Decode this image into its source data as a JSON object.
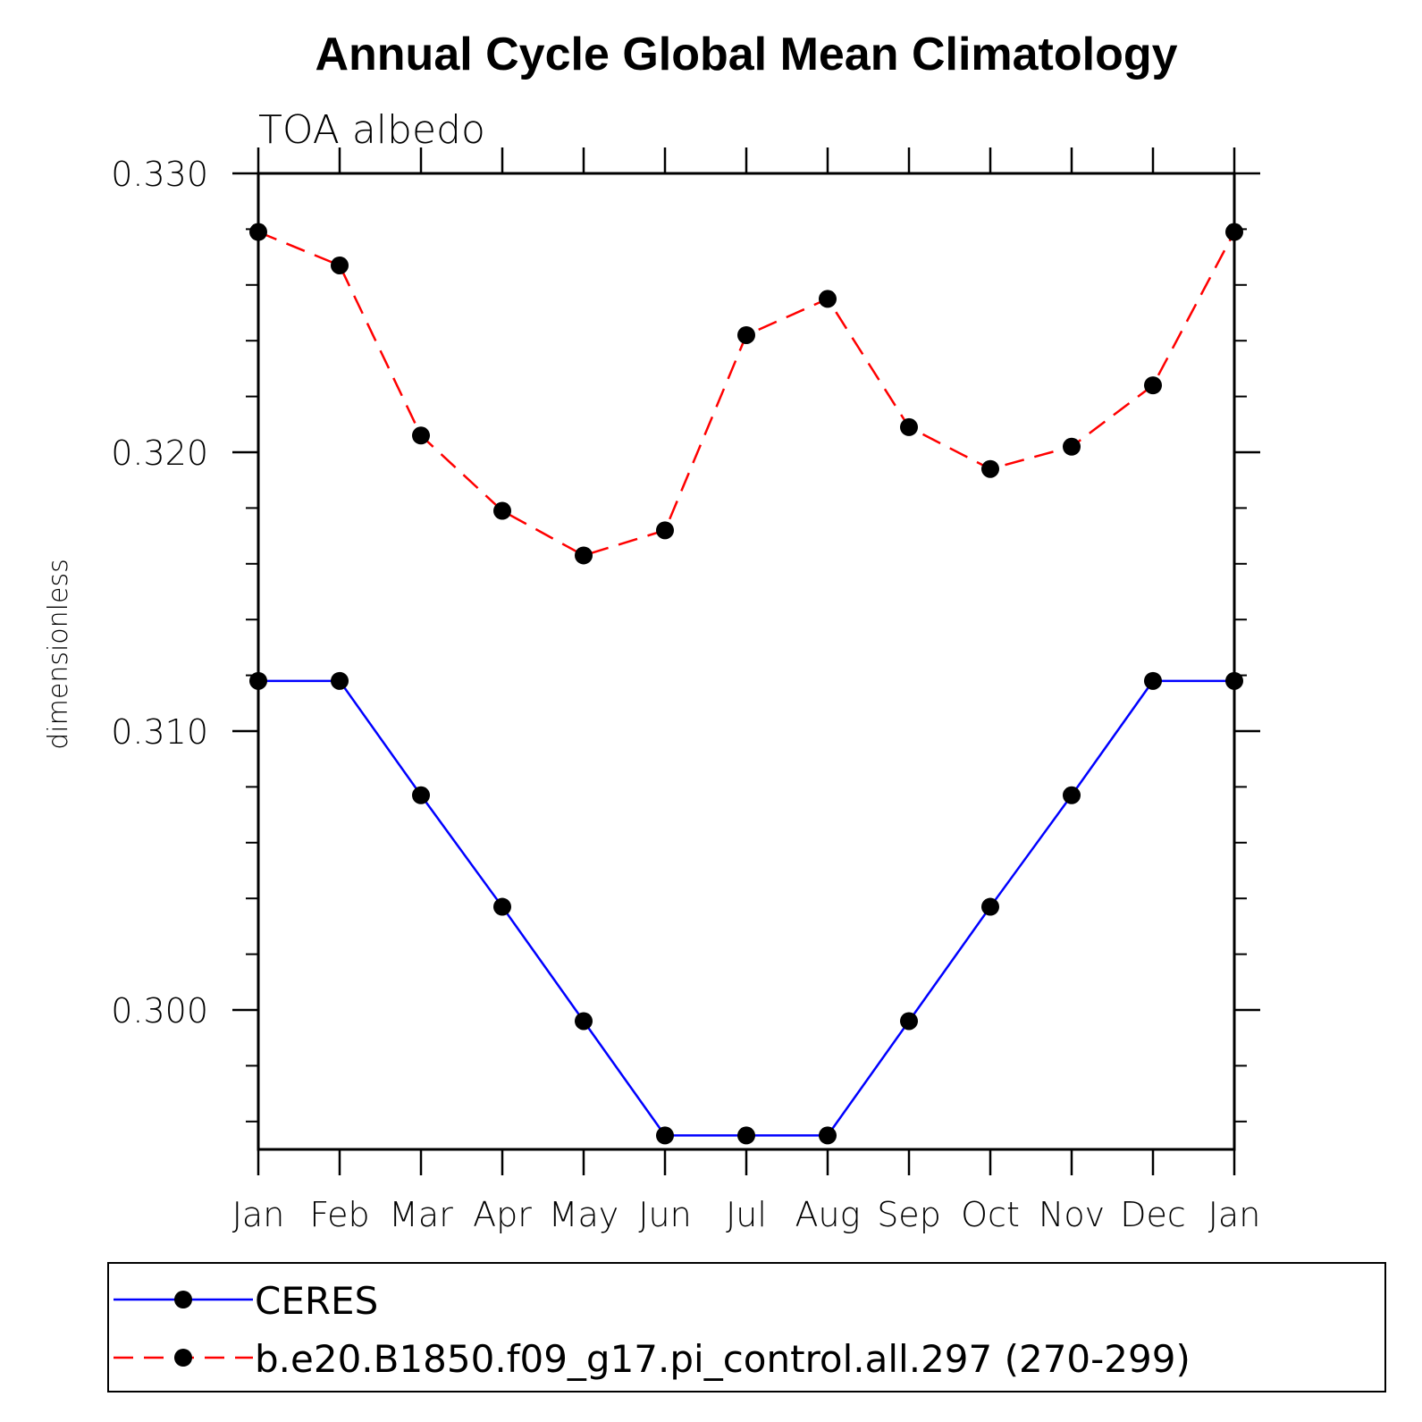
{
  "chart_data": {
    "type": "line",
    "title": "Annual Cycle Global Mean Climatology",
    "subtitle": "TOA albedo",
    "xlabel": "",
    "ylabel": "dimensionless",
    "categories": [
      "Jan",
      "Feb",
      "Mar",
      "Apr",
      "May",
      "Jun",
      "Jul",
      "Aug",
      "Sep",
      "Oct",
      "Nov",
      "Dec",
      "Jan"
    ],
    "ylim": [
      0.295,
      0.33
    ],
    "yticks": [
      0.3,
      0.31,
      0.32,
      0.33
    ],
    "ytick_labels": [
      "0.300",
      "0.310",
      "0.320",
      "0.330"
    ],
    "series": [
      {
        "name": "CERES",
        "color": "#0000ff",
        "dash": "solid",
        "values": [
          0.3118,
          0.3118,
          0.3077,
          0.3037,
          0.2996,
          0.2955,
          0.2955,
          0.2955,
          0.2996,
          0.3037,
          0.3077,
          0.3118,
          0.3118
        ]
      },
      {
        "name": "b.e20.B1850.f09_g17.pi_control.all.297 (270-299)",
        "color": "#ff0000",
        "dash": "dashed",
        "values": [
          0.3279,
          0.3267,
          0.3206,
          0.3179,
          0.3163,
          0.3172,
          0.3242,
          0.3255,
          0.3209,
          0.3194,
          0.3202,
          0.3224,
          0.3279
        ]
      }
    ],
    "marker_color": "#000000",
    "grid": false,
    "legend_position": "bottom"
  }
}
